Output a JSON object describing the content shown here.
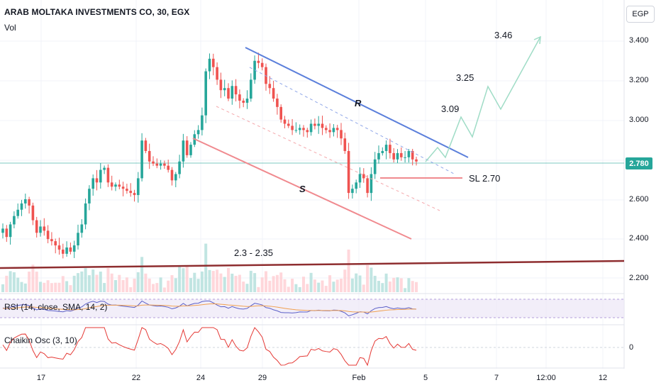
{
  "header": {
    "symbol_title": "ARAB MOLTAKA INVESTMENTS CO, 30, EGX",
    "volume_label": "Vol",
    "currency": "EGP"
  },
  "price_axis": {
    "ticks": [
      "3.400",
      "3.200",
      "3.000",
      "2.600",
      "2.400",
      "2.200"
    ],
    "current_price": "2.780"
  },
  "time_axis": {
    "labels": [
      "17",
      "22",
      "24",
      "29",
      "Feb",
      "5",
      "7",
      "12:00",
      "12"
    ]
  },
  "annotations": {
    "target_3": "3.46",
    "target_2": "3.25",
    "target_1": "3.09",
    "resistance_label": "R",
    "support_label": "S",
    "stop_loss": "SL 2.70",
    "zone_label": "2.3 - 2.35"
  },
  "indicators": {
    "rsi_label": "RSI (14, close, SMA, 14, 2)",
    "chaikin_label": "Chaikin Osc (3, 10)",
    "chaikin_zero": "0"
  },
  "colors": {
    "up": "#26a69a",
    "down": "#ef5350",
    "resistance": "#5b7fdb",
    "support": "#f08a8f",
    "zone_line": "#8e2d2f",
    "projection": "#9fdcc6",
    "rsi_line": "#5b5fc7",
    "rsi_ma": "#f0a050",
    "chaikin": "#e53935"
  },
  "chart_data": {
    "type": "candlestick",
    "price_range": [
      2.13,
      3.55
    ],
    "closes": [
      2.46,
      2.42,
      2.48,
      2.52,
      2.55,
      2.58,
      2.6,
      2.57,
      2.5,
      2.44,
      2.47,
      2.45,
      2.41,
      2.4,
      2.38,
      2.36,
      2.34,
      2.37,
      2.35,
      2.38,
      2.44,
      2.48,
      2.58,
      2.65,
      2.7,
      2.68,
      2.74,
      2.75,
      2.68,
      2.66,
      2.67,
      2.66,
      2.65,
      2.64,
      2.63,
      2.62,
      2.7,
      2.88,
      2.83,
      2.78,
      2.77,
      2.76,
      2.77,
      2.76,
      2.74,
      2.69,
      2.72,
      2.78,
      2.88,
      2.81,
      2.86,
      2.91,
      2.93,
      3.0,
      3.21,
      3.27,
      3.23,
      3.17,
      3.12,
      3.13,
      3.08,
      3.14,
      3.1,
      3.07,
      3.06,
      3.08,
      3.17,
      3.26,
      3.25,
      3.23,
      3.15,
      3.13,
      3.08,
      3.04,
      2.98,
      2.96,
      2.95,
      2.93,
      2.93,
      2.94,
      2.93,
      2.92,
      2.96,
      2.95,
      2.96,
      2.94,
      2.93,
      2.92,
      2.94,
      2.93,
      2.89,
      2.83,
      2.63,
      2.65,
      2.68,
      2.72,
      2.7,
      2.63,
      2.72,
      2.79,
      2.82,
      2.83,
      2.86,
      2.82,
      2.79,
      2.82,
      2.8,
      2.8,
      2.83,
      2.79,
      2.78
    ]
  }
}
